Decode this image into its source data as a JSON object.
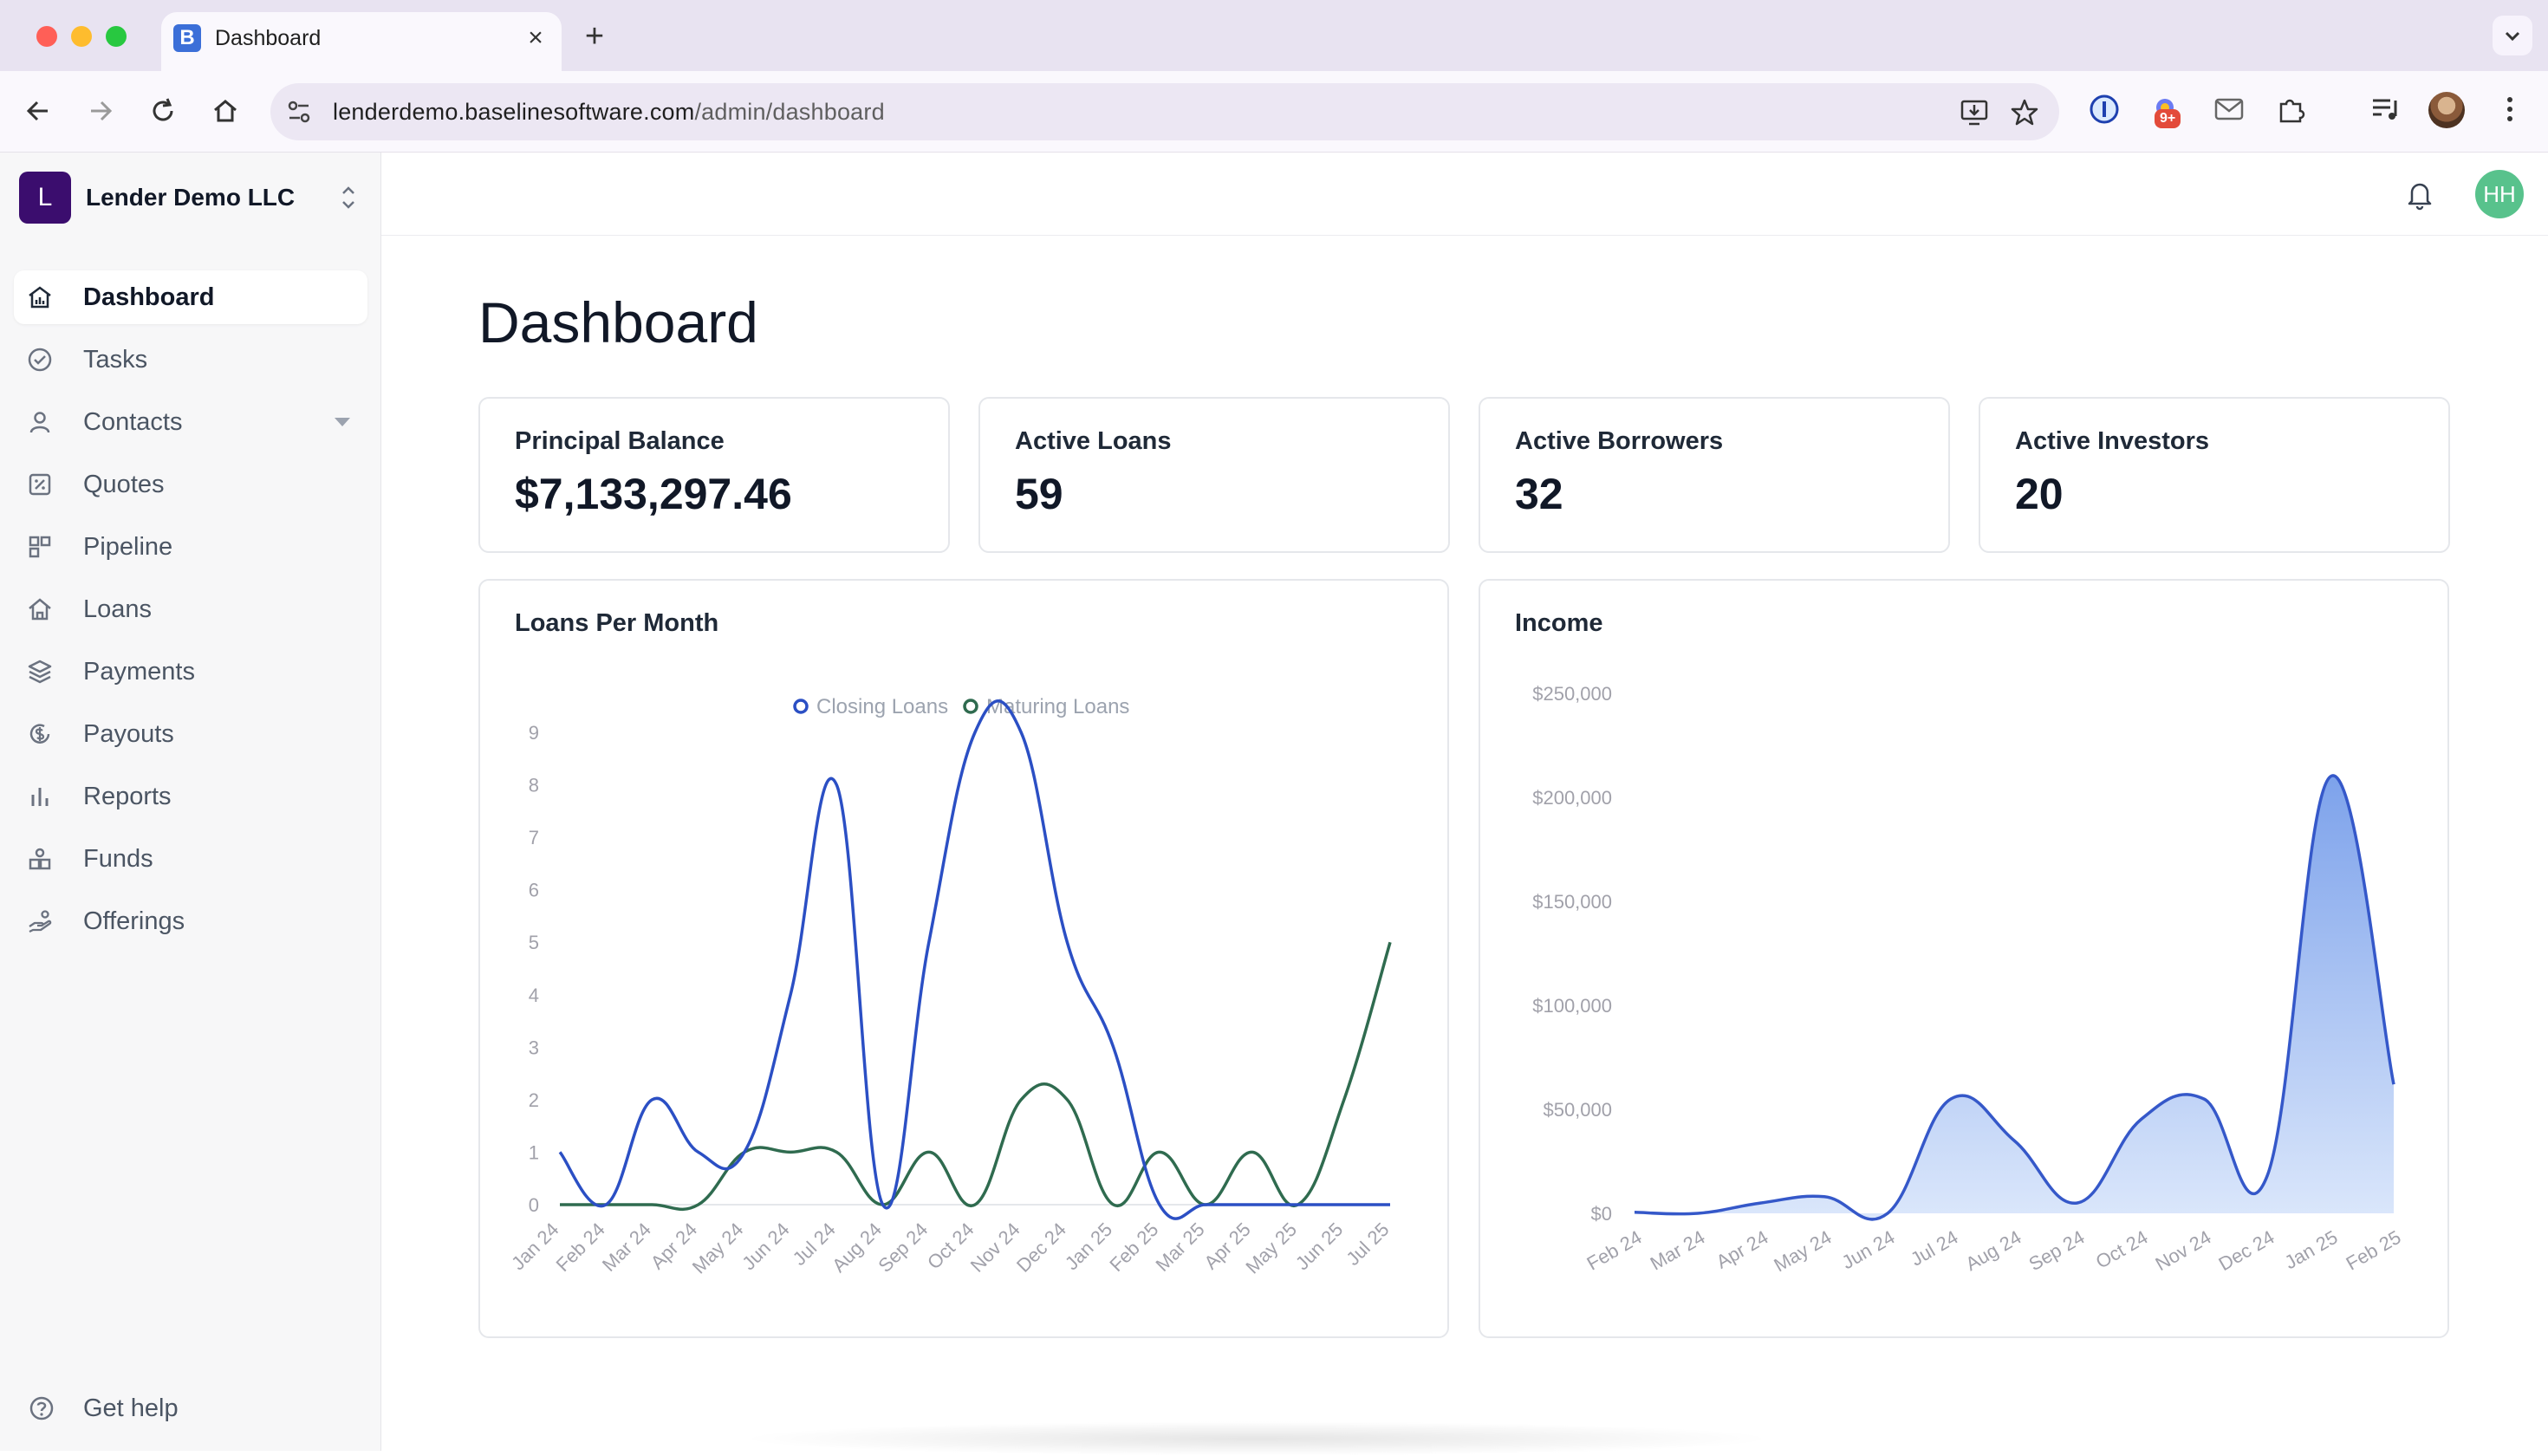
{
  "browser": {
    "tab_title": "Dashboard",
    "tab_favicon": "B",
    "url_host": "lenderdemo.baselinesoftware.com",
    "url_path": "/admin/dashboard",
    "extension_badge": "9+"
  },
  "org": {
    "initial": "L",
    "name": "Lender Demo LLC"
  },
  "nav": {
    "items": [
      {
        "label": "Dashboard",
        "icon": "chart-house-icon",
        "active": true
      },
      {
        "label": "Tasks",
        "icon": "check-circle-icon"
      },
      {
        "label": "Contacts",
        "icon": "user-icon"
      },
      {
        "label": "Quotes",
        "icon": "percent-doc-icon"
      },
      {
        "label": "Pipeline",
        "icon": "pipeline-icon"
      },
      {
        "label": "Loans",
        "icon": "house-icon"
      },
      {
        "label": "Payments",
        "icon": "layers-icon"
      },
      {
        "label": "Payouts",
        "icon": "dollar-circle-icon"
      },
      {
        "label": "Reports",
        "icon": "bar-chart-icon"
      },
      {
        "label": "Funds",
        "icon": "funds-icon"
      },
      {
        "label": "Offerings",
        "icon": "hand-icon"
      }
    ],
    "help_label": "Get help"
  },
  "user": {
    "initials": "HH"
  },
  "page": {
    "title": "Dashboard"
  },
  "stats": [
    {
      "label": "Principal Balance",
      "value": "$7,133,297.46"
    },
    {
      "label": "Active Loans",
      "value": "59"
    },
    {
      "label": "Active Borrowers",
      "value": "32"
    },
    {
      "label": "Active Investors",
      "value": "20"
    }
  ],
  "colors": {
    "closing": "#2b4fc4",
    "maturing": "#2f6b4f",
    "income_line": "#3558c9",
    "income_fill_top": "#7da2eb",
    "income_fill_bottom": "#dbe7fb"
  },
  "chart_data": [
    {
      "type": "line",
      "title": "Loans Per Month",
      "categories": [
        "Jan 24",
        "Feb 24",
        "Mar 24",
        "Apr 24",
        "May 24",
        "Jun 24",
        "Jul 24",
        "Aug 24",
        "Sep 24",
        "Oct 24",
        "Nov 24",
        "Dec 24",
        "Jan 25",
        "Feb 25",
        "Mar 25",
        "Apr 25",
        "May 25",
        "Jun 25",
        "Jul 25"
      ],
      "series": [
        {
          "name": "Closing Loans",
          "values": [
            1,
            0,
            2,
            1,
            1,
            4,
            8,
            0,
            5,
            9,
            9,
            5,
            3,
            0,
            0,
            0,
            0,
            0,
            0
          ]
        },
        {
          "name": "Maturing Loans",
          "values": [
            0,
            0,
            0,
            0,
            1,
            1,
            1,
            0,
            1,
            0,
            2,
            2,
            0,
            1,
            0,
            1,
            0,
            2,
            5
          ]
        }
      ],
      "y_ticks": [
        "0",
        "1",
        "2",
        "3",
        "4",
        "5",
        "6",
        "7",
        "8",
        "9"
      ],
      "ylim": [
        0,
        9
      ],
      "legend": "top-center",
      "grid": false
    },
    {
      "type": "area",
      "title": "Income",
      "categories": [
        "Feb 24",
        "Mar 24",
        "Apr 24",
        "May 24",
        "Jun 24",
        "Jul 24",
        "Aug 24",
        "Sep 24",
        "Oct 24",
        "Nov 24",
        "Dec 24",
        "Jan 25",
        "Feb 25"
      ],
      "series": [
        {
          "values": [
            500,
            0,
            5000,
            8000,
            0,
            55000,
            35000,
            5000,
            45000,
            55000,
            18000,
            210000,
            62000
          ]
        }
      ],
      "y_ticks": [
        "$0",
        "$50,000",
        "$100,000",
        "$150,000",
        "$200,000",
        "$250,000"
      ],
      "ylim": [
        0,
        250000
      ],
      "grid": false
    }
  ]
}
